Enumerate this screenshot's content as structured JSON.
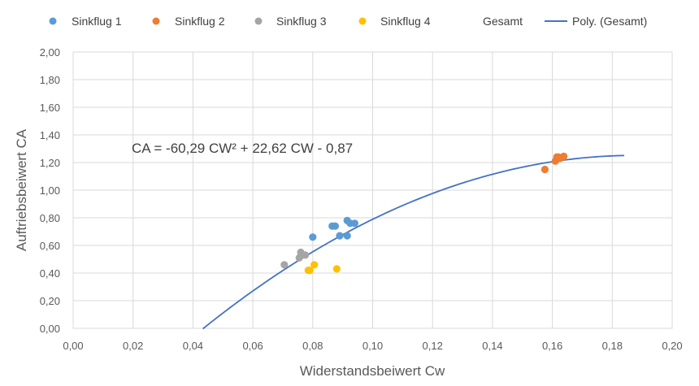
{
  "chart_data": {
    "type": "scatter",
    "xlabel": "Widerstandsbeiwert Cw",
    "ylabel": "Auftriebsbeiwert CA",
    "xlim": [
      0,
      0.2
    ],
    "ylim": [
      0,
      2
    ],
    "x_ticks": [
      0,
      0.02,
      0.04,
      0.06,
      0.08,
      0.1,
      0.12,
      0.14,
      0.16,
      0.18,
      0.2
    ],
    "x_tick_labels": [
      "0,00",
      "0,02",
      "0,04",
      "0,06",
      "0,08",
      "0,10",
      "0,12",
      "0,14",
      "0,16",
      "0,18",
      "0,20"
    ],
    "y_ticks": [
      0,
      0.2,
      0.4,
      0.6,
      0.8,
      1.0,
      1.2,
      1.4,
      1.6,
      1.8,
      2.0
    ],
    "y_tick_labels": [
      "0,00",
      "0,20",
      "0,40",
      "0,60",
      "0,80",
      "1,00",
      "1,20",
      "1,40",
      "1,60",
      "1,80",
      "2,00"
    ],
    "grid": "vertical and horizontal",
    "legend_position": "top",
    "series": [
      {
        "name": "Sinkflug 1",
        "color": "#5B9BD5",
        "points": [
          [
            0.08,
            0.66
          ],
          [
            0.0865,
            0.74
          ],
          [
            0.0875,
            0.74
          ],
          [
            0.089,
            0.67
          ],
          [
            0.0915,
            0.67
          ],
          [
            0.0915,
            0.78
          ],
          [
            0.0925,
            0.76
          ],
          [
            0.094,
            0.76
          ]
        ]
      },
      {
        "name": "Sinkflug 2",
        "color": "#ED7D31",
        "points": [
          [
            0.1575,
            1.15
          ],
          [
            0.161,
            1.21
          ],
          [
            0.1615,
            1.24
          ],
          [
            0.162,
            1.24
          ],
          [
            0.1625,
            1.23
          ],
          [
            0.1635,
            1.24
          ],
          [
            0.1638,
            1.245
          ]
        ]
      },
      {
        "name": "Sinkflug 3",
        "color": "#A5A5A5",
        "points": [
          [
            0.0705,
            0.46
          ],
          [
            0.0755,
            0.51
          ],
          [
            0.076,
            0.55
          ],
          [
            0.0765,
            0.53
          ],
          [
            0.0775,
            0.53
          ]
        ]
      },
      {
        "name": "Sinkflug 4",
        "color": "#FFC000",
        "points": [
          [
            0.0785,
            0.42
          ],
          [
            0.079,
            0.42
          ],
          [
            0.0805,
            0.46
          ],
          [
            0.088,
            0.43
          ]
        ]
      },
      {
        "name": "Gesamt",
        "color": "none",
        "points": []
      }
    ],
    "trendline": {
      "name": "Poly. (Gesamt)",
      "color": "#4472C4",
      "coefficients": {
        "a": -60.29,
        "b": 22.62,
        "c": -0.87
      },
      "x_range": [
        0.0433,
        0.184
      ],
      "equation_label": "CA = -60,29 CW² + 22,62 CW - 0,87"
    }
  }
}
